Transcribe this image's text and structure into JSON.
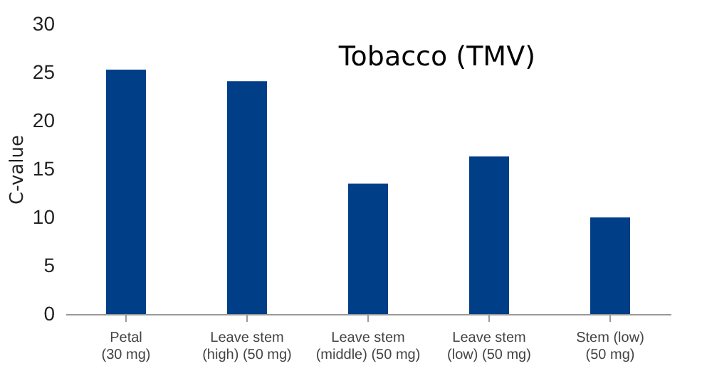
{
  "chart_data": {
    "type": "bar",
    "title": "Tobacco (TMV)",
    "ylabel": "C-value",
    "categories": [
      "Petal\n(30 mg)",
      "Leave stem\n(high) (50 mg)",
      "Leave stem\n(middle) (50 mg)",
      "Leave stem\n(low) (50 mg)",
      "Stem (low)\n(50 mg)"
    ],
    "values": [
      25.3,
      24.1,
      13.5,
      16.3,
      10.0
    ],
    "color": "#003f87",
    "ylim": [
      0,
      30
    ],
    "yticks": [
      0,
      5,
      10,
      15,
      20,
      25,
      30
    ],
    "grid": false
  }
}
